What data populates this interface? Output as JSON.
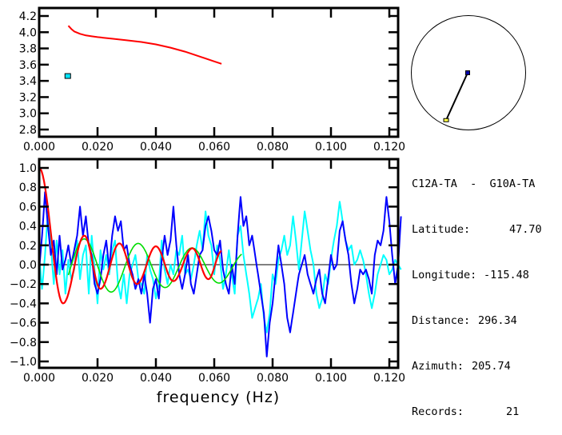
{
  "colors": {
    "background": "#ffffff",
    "axes": "#000000",
    "red": "#ff0000",
    "blue": "#0000ff",
    "cyan": "#00ffff",
    "green": "#00dd00",
    "marker_fill": "#00e5ff",
    "station_src": "#0000aa",
    "station_rcv": "#ffff44"
  },
  "station_info": {
    "pair": "C12A-TA  -  G10A-TA",
    "rows": [
      {
        "label": "Latitude:",
        "value": "47.70"
      },
      {
        "label": "Longitude:",
        "value": "-115.48"
      },
      {
        "label": "Distance:",
        "value": "296.34"
      },
      {
        "label": "Azimuth:",
        "value": "205.74"
      },
      {
        "label": "Records:",
        "value": "21"
      }
    ]
  },
  "azimuth_map": {
    "azimuth_deg": 205.74,
    "description": "station-pair azimuth on unit circle"
  },
  "chart_data": [
    {
      "type": "line",
      "title": "",
      "xlabel": "",
      "ylabel": "",
      "xlim": [
        0.0,
        0.124
      ],
      "ylim": [
        2.7,
        4.25
      ],
      "xticks": [
        "0.000",
        "0.020",
        "0.040",
        "0.060",
        "0.080",
        "0.100",
        "0.120"
      ],
      "xtick_values": [
        0.0,
        0.02,
        0.04,
        0.06,
        0.08,
        0.1,
        0.12
      ],
      "yticks": [
        "2.8",
        "3.0",
        "3.2",
        "3.4",
        "3.6",
        "3.8",
        "4.0",
        "4.2"
      ],
      "ytick_values": [
        2.8,
        3.0,
        3.2,
        3.4,
        3.6,
        3.8,
        4.0,
        4.2
      ],
      "grid": false,
      "series": [
        {
          "name": "dispersion-curve",
          "color": "red",
          "x": [
            0.01,
            0.011,
            0.012,
            0.014,
            0.016,
            0.018,
            0.02,
            0.025,
            0.03,
            0.035,
            0.04,
            0.045,
            0.05,
            0.055,
            0.06,
            0.0625
          ],
          "y": [
            4.08,
            4.04,
            4.01,
            3.98,
            3.96,
            3.95,
            3.94,
            3.92,
            3.9,
            3.88,
            3.85,
            3.81,
            3.76,
            3.7,
            3.64,
            3.61
          ]
        }
      ],
      "markers": [
        {
          "name": "measurement-point",
          "color": "marker_fill",
          "x": 0.0098,
          "y": 3.46
        }
      ]
    },
    {
      "type": "line",
      "title": "",
      "xlabel": "frequency (Hz)",
      "ylabel": "",
      "xlim": [
        0.0,
        0.124
      ],
      "ylim": [
        -1.1,
        1.05
      ],
      "xticks": [
        "0.000",
        "0.020",
        "0.040",
        "0.060",
        "0.080",
        "0.100",
        "0.120"
      ],
      "xtick_values": [
        0.0,
        0.02,
        0.04,
        0.06,
        0.08,
        0.1,
        0.12
      ],
      "yticks": [
        "1.0",
        "0.8",
        "0.6",
        "0.4",
        "0.2",
        "0.0",
        "-0.2",
        "-0.4",
        "-0.6",
        "-0.8",
        "-1.0"
      ],
      "ytick_values": [
        1.0,
        0.8,
        0.6,
        0.4,
        0.2,
        0.0,
        -0.2,
        -0.4,
        -0.6,
        -0.8,
        -1.0
      ],
      "zero_line": true,
      "grid": false,
      "series": [
        {
          "name": "cyan-trace",
          "color": "cyan",
          "x": [
            0.0,
            0.001,
            0.002,
            0.003,
            0.004,
            0.005,
            0.006,
            0.007,
            0.008,
            0.009,
            0.01,
            0.011,
            0.012,
            0.013,
            0.014,
            0.015,
            0.016,
            0.017,
            0.018,
            0.019,
            0.02,
            0.021,
            0.022,
            0.023,
            0.024,
            0.025,
            0.026,
            0.027,
            0.028,
            0.029,
            0.03,
            0.031,
            0.032,
            0.033,
            0.034,
            0.035,
            0.036,
            0.037,
            0.038,
            0.039,
            0.04,
            0.041,
            0.042,
            0.043,
            0.044,
            0.045,
            0.046,
            0.047,
            0.048,
            0.049,
            0.05,
            0.051,
            0.052,
            0.053,
            0.054,
            0.055,
            0.056,
            0.057,
            0.058,
            0.059,
            0.06,
            0.061,
            0.062,
            0.063,
            0.064,
            0.065,
            0.066,
            0.067,
            0.068,
            0.069,
            0.07,
            0.071,
            0.072,
            0.073,
            0.074,
            0.075,
            0.076,
            0.077,
            0.078,
            0.079,
            0.08,
            0.081,
            0.082,
            0.083,
            0.084,
            0.085,
            0.086,
            0.087,
            0.088,
            0.089,
            0.09,
            0.091,
            0.092,
            0.093,
            0.094,
            0.095,
            0.096,
            0.097,
            0.098,
            0.099,
            0.1,
            0.101,
            0.102,
            0.103,
            0.104,
            0.105,
            0.106,
            0.107,
            0.108,
            0.109,
            0.11,
            0.111,
            0.112,
            0.113,
            0.114,
            0.115,
            0.116,
            0.117,
            0.118,
            0.119,
            0.12,
            0.121,
            0.122,
            0.123,
            0.124
          ],
          "y": [
            0.08,
            -0.25,
            0.1,
            0.55,
            0.2,
            -0.2,
            0.25,
            -0.1,
            0.15,
            -0.3,
            0.05,
            -0.15,
            -0.05,
            0.25,
            -0.15,
            0.1,
            0.2,
            -0.3,
            0.3,
            -0.05,
            -0.4,
            0.15,
            -0.05,
            0.1,
            -0.1,
            0.15,
            0.25,
            -0.2,
            -0.35,
            -0.1,
            -0.4,
            -0.1,
            0.0,
            0.1,
            -0.15,
            -0.2,
            -0.3,
            0.1,
            -0.05,
            -0.15,
            -0.35,
            -0.2,
            0.25,
            -0.05,
            -0.2,
            0.0,
            -0.1,
            0.15,
            0.1,
            0.3,
            -0.1,
            -0.05,
            -0.15,
            0.0,
            0.2,
            0.35,
            0.15,
            0.55,
            0.3,
            0.2,
            -0.1,
            0.2,
            0.05,
            -0.25,
            -0.1,
            0.15,
            -0.1,
            -0.3,
            0.3,
            0.4,
            0.1,
            -0.1,
            -0.3,
            -0.55,
            -0.45,
            -0.35,
            -0.2,
            -0.55,
            -0.7,
            -0.5,
            -0.1,
            -0.2,
            0.05,
            0.15,
            0.3,
            0.1,
            0.2,
            0.5,
            0.25,
            -0.05,
            0.25,
            0.55,
            0.35,
            0.15,
            0.0,
            -0.3,
            -0.45,
            -0.35,
            -0.1,
            -0.2,
            0.05,
            0.25,
            0.4,
            0.65,
            0.45,
            0.25,
            0.15,
            0.2,
            0.0,
            0.05,
            0.15,
            0.05,
            -0.1,
            -0.3,
            -0.45,
            -0.3,
            -0.1,
            0.0,
            0.1,
            0.05,
            -0.1,
            -0.05,
            0.05,
            0.0,
            -0.05
          ]
        },
        {
          "name": "blue-trace",
          "color": "blue",
          "x": [
            0.0,
            0.001,
            0.002,
            0.003,
            0.004,
            0.005,
            0.006,
            0.007,
            0.008,
            0.009,
            0.01,
            0.011,
            0.012,
            0.013,
            0.014,
            0.015,
            0.016,
            0.017,
            0.018,
            0.019,
            0.02,
            0.021,
            0.022,
            0.023,
            0.024,
            0.025,
            0.026,
            0.027,
            0.028,
            0.029,
            0.03,
            0.031,
            0.032,
            0.033,
            0.034,
            0.035,
            0.036,
            0.037,
            0.038,
            0.039,
            0.04,
            0.041,
            0.042,
            0.043,
            0.044,
            0.045,
            0.046,
            0.047,
            0.048,
            0.049,
            0.05,
            0.051,
            0.052,
            0.053,
            0.054,
            0.055,
            0.056,
            0.057,
            0.058,
            0.059,
            0.06,
            0.061,
            0.062,
            0.063,
            0.064,
            0.065,
            0.066,
            0.067,
            0.068,
            0.069,
            0.07,
            0.071,
            0.072,
            0.073,
            0.074,
            0.075,
            0.076,
            0.077,
            0.078,
            0.079,
            0.08,
            0.081,
            0.082,
            0.083,
            0.084,
            0.085,
            0.086,
            0.087,
            0.088,
            0.089,
            0.09,
            0.091,
            0.092,
            0.093,
            0.094,
            0.095,
            0.096,
            0.097,
            0.098,
            0.099,
            0.1,
            0.101,
            0.102,
            0.103,
            0.104,
            0.105,
            0.106,
            0.107,
            0.108,
            0.109,
            0.11,
            0.111,
            0.112,
            0.113,
            0.114,
            0.115,
            0.116,
            0.117,
            0.118,
            0.119,
            0.12,
            0.121,
            0.122,
            0.123,
            0.124
          ],
          "y": [
            -0.05,
            0.3,
            0.75,
            0.4,
            0.1,
            0.25,
            -0.1,
            0.3,
            -0.05,
            0.05,
            0.2,
            0.0,
            0.15,
            0.3,
            0.6,
            0.3,
            0.5,
            0.2,
            0.1,
            -0.2,
            -0.3,
            -0.15,
            0.1,
            0.25,
            -0.05,
            0.3,
            0.5,
            0.35,
            0.45,
            0.15,
            0.2,
            0.0,
            -0.1,
            -0.25,
            -0.15,
            -0.3,
            -0.1,
            -0.3,
            -0.6,
            -0.25,
            -0.15,
            -0.35,
            0.05,
            0.3,
            0.1,
            0.25,
            0.6,
            0.2,
            -0.1,
            -0.25,
            -0.1,
            0.1,
            -0.2,
            -0.3,
            -0.1,
            0.1,
            0.15,
            0.4,
            0.5,
            0.35,
            0.15,
            0.1,
            0.25,
            -0.05,
            -0.2,
            -0.3,
            0.0,
            -0.2,
            0.3,
            0.7,
            0.4,
            0.5,
            0.2,
            0.3,
            0.1,
            -0.1,
            -0.3,
            -0.5,
            -0.95,
            -0.6,
            -0.4,
            -0.1,
            0.2,
            0.0,
            -0.2,
            -0.55,
            -0.7,
            -0.5,
            -0.3,
            -0.1,
            0.0,
            0.1,
            -0.1,
            -0.2,
            -0.3,
            -0.15,
            -0.05,
            -0.3,
            -0.4,
            -0.15,
            0.1,
            -0.05,
            0.0,
            0.35,
            0.45,
            0.25,
            0.1,
            -0.2,
            -0.4,
            -0.25,
            -0.05,
            -0.1,
            -0.05,
            -0.15,
            -0.3,
            0.1,
            0.25,
            0.2,
            0.35,
            0.7,
            0.45,
            0.1,
            -0.2,
            0.0,
            0.5
          ]
        },
        {
          "name": "green-trace",
          "color": "green",
          "fn": "damped-cosine",
          "x_start": 0.01,
          "x_end": 0.0695,
          "amplitude": [
            0.3,
            0.15
          ],
          "period": 0.0185,
          "phase_peak": 0.0155
        },
        {
          "name": "red-trace",
          "color": "red",
          "fn": "bessel-like",
          "x_start": 0.0,
          "x_end": 0.0625,
          "peaks": [
            {
              "x": 0.0,
              "y": 1.0
            },
            {
              "x": 0.0082,
              "y": -0.4
            },
            {
              "x": 0.0155,
              "y": 0.3
            },
            {
              "x": 0.021,
              "y": -0.25
            },
            {
              "x": 0.0275,
              "y": 0.22
            },
            {
              "x": 0.0335,
              "y": -0.2
            },
            {
              "x": 0.04,
              "y": 0.19
            },
            {
              "x": 0.046,
              "y": -0.17
            },
            {
              "x": 0.0525,
              "y": 0.17
            },
            {
              "x": 0.058,
              "y": -0.15
            },
            {
              "x": 0.0625,
              "y": 0.14
            }
          ]
        }
      ]
    }
  ]
}
